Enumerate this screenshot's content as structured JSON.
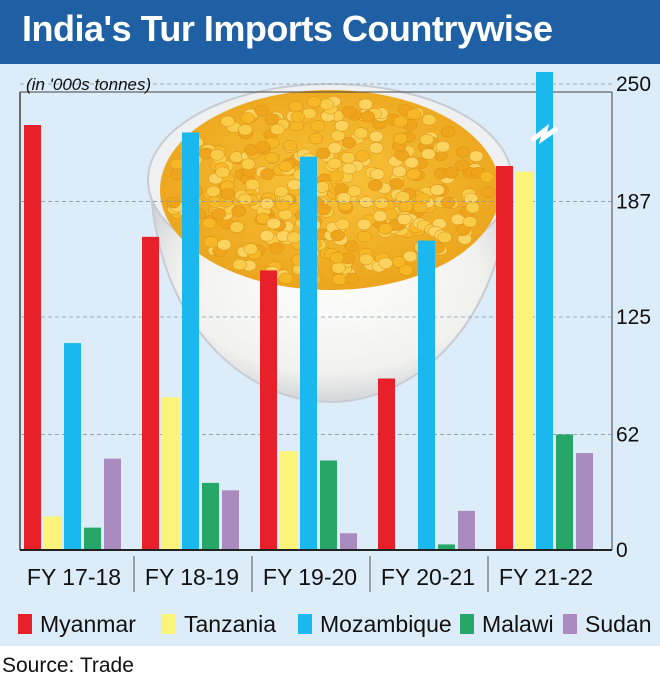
{
  "title": "India's Tur Imports Countrywise",
  "unit_label": "(in '000s tonnes)",
  "source": "Source: Trade",
  "chart_data": {
    "type": "bar",
    "title": "India's Tur Imports Countrywise",
    "ylabel": "(in '000s tonnes)",
    "xlabel": "",
    "categories": [
      "FY 17-18",
      "FY 18-19",
      "FY 19-20",
      "FY 20-21",
      "FY 21-22"
    ],
    "ylim": [
      0,
      250
    ],
    "yticks": [
      0,
      62,
      125,
      187,
      250
    ],
    "axis_side": "right",
    "grid": true,
    "legend_position": "bottom",
    "axis_break": {
      "series": "Mozambique",
      "category": "FY 21-22"
    },
    "series": [
      {
        "name": "Myanmar",
        "color": "#e8202a",
        "values": [
          228,
          168,
          150,
          92,
          206
        ]
      },
      {
        "name": "Tanzania",
        "color": "#fbf479",
        "values": [
          18,
          82,
          53,
          0,
          203
        ]
      },
      {
        "name": "Mozambique",
        "color": "#1ab8ee",
        "values": [
          111,
          224,
          211,
          166,
          275
        ]
      },
      {
        "name": "Malawi",
        "color": "#26a767",
        "values": [
          12,
          36,
          48,
          3,
          62
        ]
      },
      {
        "name": "Sudan",
        "color": "#aa8bc0",
        "values": [
          49,
          32,
          9,
          21,
          52
        ]
      }
    ]
  }
}
